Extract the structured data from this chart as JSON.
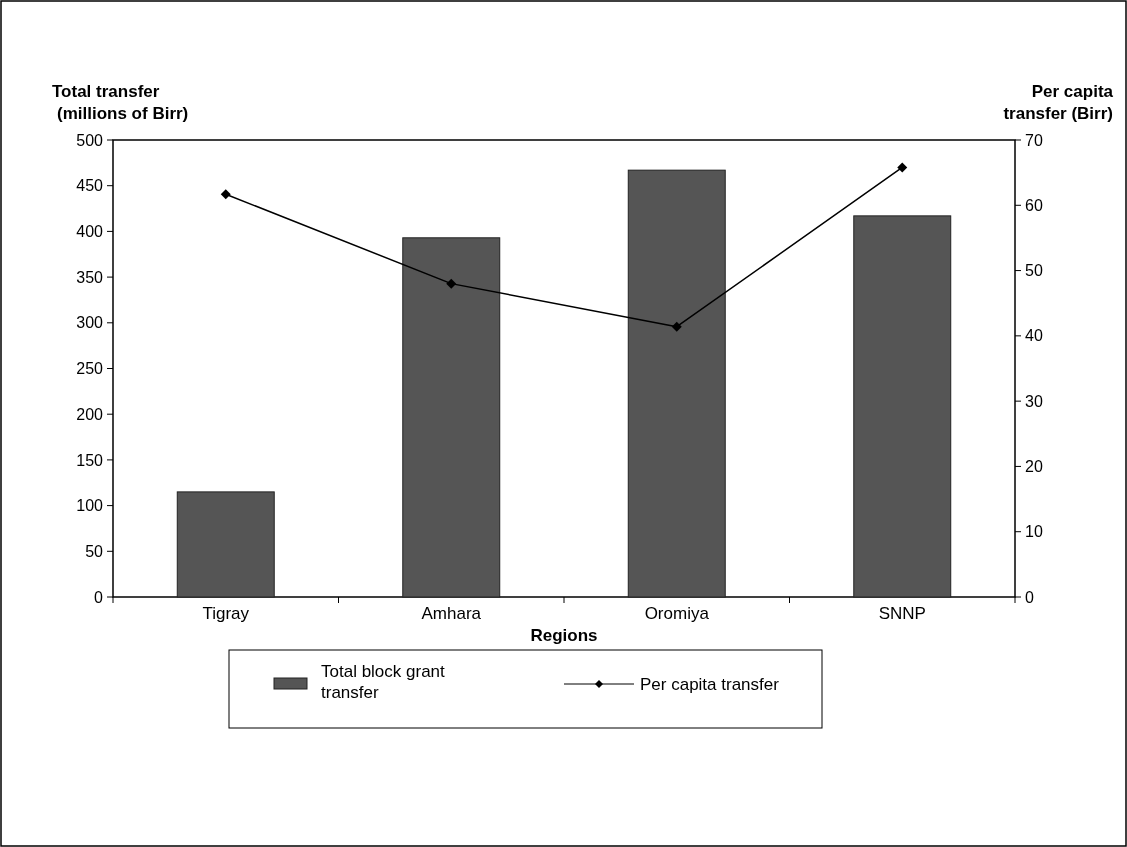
{
  "chart_data": {
    "type": "bar",
    "xlabel": "Regions",
    "ylabel": "Total transfer\n(millions of Birr)",
    "y2label": "Per capita\ntransfer (Birr)",
    "categories": [
      "Tigray",
      "Amhara",
      "Oromiya",
      "SNNP"
    ],
    "series": [
      {
        "name": "Total block grant transfer",
        "color": "#555555",
        "values": [
          115,
          393,
          467,
          417
        ]
      },
      {
        "name": "Per capita transfer",
        "type": "line",
        "axis": "y2",
        "color": "#000000",
        "marker": "diamond",
        "values": [
          61.7,
          48,
          41.4,
          65.8
        ]
      }
    ],
    "ylim": [
      0,
      500
    ],
    "yticks": [
      0,
      50,
      100,
      150,
      200,
      250,
      300,
      350,
      400,
      450,
      500
    ],
    "y2lim": [
      0,
      70
    ],
    "y2ticks": [
      0,
      10,
      20,
      30,
      40,
      50,
      60,
      70
    ],
    "grid": false,
    "legend": "bottom"
  }
}
